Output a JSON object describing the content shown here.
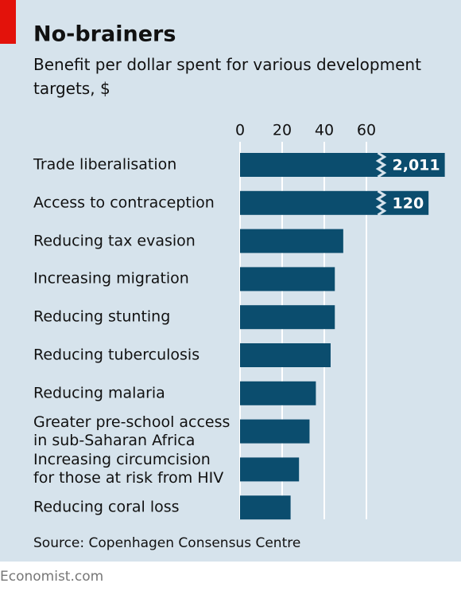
{
  "chart_data": {
    "type": "bar",
    "orientation": "horizontal",
    "title": "No-brainers",
    "subtitle": "Benefit per dollar spent for various development targets, $",
    "source": "Source: Copenhagen Consensus Centre",
    "footer": "Economist.com",
    "categories": [
      "Trade liberalisation",
      "Access to contraception",
      "Reducing tax evasion",
      "Increasing migration",
      "Reducing stunting",
      "Reducing tuberculosis",
      "Reducing malaria",
      "Greater pre-school access\nin sub-Saharan Africa",
      "Increasing circumcision\nfor those at risk from HIV",
      "Reducing coral loss"
    ],
    "values": [
      2011,
      120,
      49,
      45,
      45,
      43,
      36,
      33,
      28,
      24
    ],
    "value_labels": [
      "2,011",
      "120",
      null,
      null,
      null,
      null,
      null,
      null,
      null,
      null
    ],
    "color": "#0b4d6e",
    "xlim": [
      0,
      70
    ],
    "xticks": [
      0,
      20,
      40,
      60
    ],
    "grid": true
  }
}
